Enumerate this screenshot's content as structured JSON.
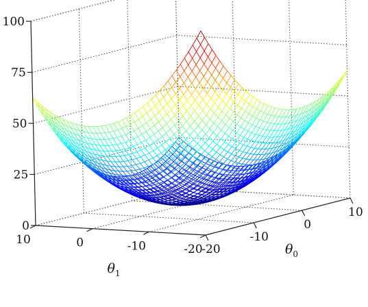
{
  "chart_data": {
    "type": "surface",
    "function": "z = (theta0^2 + theta1^2)/8",
    "x": {
      "label": "θ",
      "label_subscript": "0",
      "range": [
        -20,
        10
      ],
      "ticks": [
        -20,
        -10,
        0,
        10
      ],
      "tick_labels": [
        "-20",
        "-10",
        "0",
        "10"
      ]
    },
    "y": {
      "label": "θ",
      "label_subscript": "1",
      "range": [
        -20,
        10
      ],
      "ticks": [
        -20,
        -10,
        0,
        10
      ],
      "tick_labels": [
        "-20",
        "-10",
        "0",
        "10"
      ]
    },
    "z": {
      "label": "",
      "range": [
        0,
        100
      ],
      "ticks": [
        0,
        25,
        50,
        75,
        100
      ],
      "tick_labels": [
        "0",
        "25",
        "50",
        "75",
        "100"
      ]
    },
    "colormap": "jet",
    "mesh_lines": 40,
    "grid": true,
    "box": "dotted"
  }
}
